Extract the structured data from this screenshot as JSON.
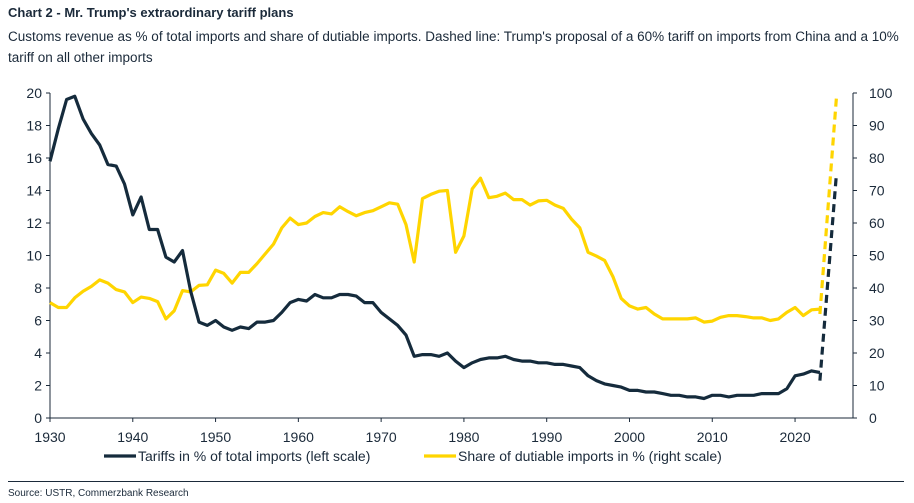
{
  "header": {
    "title": "Chart 2 - Mr. Trump's extraordinary tariff plans",
    "subtitle": "Customs revenue as % of total imports and share of dutiable imports. Dashed line: Trump's proposal of a 60% tariff on imports from China and a 10% tariff on all other imports"
  },
  "footer": {
    "source": "Source: USTR, Commerzbank Research"
  },
  "chart_data": {
    "type": "line",
    "xlim": [
      1930,
      2027
    ],
    "x_ticks": [
      1930,
      1940,
      1950,
      1960,
      1970,
      1980,
      1990,
      2000,
      2010,
      2020
    ],
    "y_left": {
      "lim": [
        0,
        20
      ],
      "ticks": [
        0,
        2,
        4,
        6,
        8,
        10,
        12,
        14,
        16,
        18,
        20
      ]
    },
    "y_right": {
      "lim": [
        0,
        100
      ],
      "ticks": [
        0,
        10,
        20,
        30,
        40,
        50,
        60,
        70,
        80,
        90,
        100
      ]
    },
    "grid": false,
    "legend": "bottom",
    "series": [
      {
        "name": "Tariffs in % of total imports (left scale)",
        "axis": "left",
        "color": "#152b3c",
        "x": [
          1930,
          1931,
          1932,
          1933,
          1934,
          1935,
          1936,
          1937,
          1938,
          1939,
          1940,
          1941,
          1942,
          1943,
          1944,
          1945,
          1946,
          1947,
          1948,
          1949,
          1950,
          1951,
          1952,
          1953,
          1954,
          1955,
          1956,
          1957,
          1958,
          1959,
          1960,
          1961,
          1962,
          1963,
          1964,
          1965,
          1966,
          1967,
          1968,
          1969,
          1970,
          1971,
          1972,
          1973,
          1974,
          1975,
          1976,
          1977,
          1978,
          1979,
          1980,
          1981,
          1982,
          1983,
          1984,
          1985,
          1986,
          1987,
          1988,
          1989,
          1990,
          1991,
          1992,
          1993,
          1994,
          1995,
          1996,
          1997,
          1998,
          1999,
          2000,
          2001,
          2002,
          2003,
          2004,
          2005,
          2006,
          2007,
          2008,
          2009,
          2010,
          2011,
          2012,
          2013,
          2014,
          2015,
          2016,
          2017,
          2018,
          2019,
          2020,
          2021,
          2022,
          2023
        ],
        "values": [
          15.8,
          17.8,
          19.6,
          19.8,
          18.4,
          17.5,
          16.8,
          15.6,
          15.5,
          14.4,
          12.5,
          13.6,
          11.6,
          11.6,
          9.9,
          9.6,
          10.3,
          7.8,
          5.9,
          5.7,
          6.0,
          5.6,
          5.4,
          5.6,
          5.5,
          5.9,
          5.9,
          6.0,
          6.5,
          7.1,
          7.3,
          7.2,
          7.6,
          7.4,
          7.4,
          7.6,
          7.6,
          7.5,
          7.1,
          7.1,
          6.5,
          6.1,
          5.7,
          5.1,
          3.8,
          3.9,
          3.9,
          3.8,
          4.0,
          3.5,
          3.1,
          3.4,
          3.6,
          3.7,
          3.7,
          3.8,
          3.6,
          3.5,
          3.5,
          3.4,
          3.4,
          3.3,
          3.3,
          3.2,
          3.1,
          2.6,
          2.3,
          2.1,
          2.0,
          1.9,
          1.7,
          1.7,
          1.6,
          1.6,
          1.5,
          1.4,
          1.4,
          1.3,
          1.3,
          1.2,
          1.4,
          1.4,
          1.3,
          1.4,
          1.4,
          1.4,
          1.5,
          1.5,
          1.5,
          1.8,
          2.6,
          2.7,
          2.9,
          2.8
        ]
      },
      {
        "name": "Share of dutiable imports in % (right scale)",
        "axis": "right",
        "color": "#ffd500",
        "x": [
          1930,
          1931,
          1932,
          1933,
          1934,
          1935,
          1936,
          1937,
          1938,
          1939,
          1940,
          1941,
          1942,
          1943,
          1944,
          1945,
          1946,
          1947,
          1948,
          1949,
          1950,
          1951,
          1952,
          1953,
          1954,
          1955,
          1956,
          1957,
          1958,
          1959,
          1960,
          1961,
          1962,
          1963,
          1964,
          1965,
          1966,
          1967,
          1968,
          1969,
          1970,
          1971,
          1972,
          1973,
          1974,
          1975,
          1976,
          1977,
          1978,
          1979,
          1980,
          1981,
          1982,
          1983,
          1984,
          1985,
          1986,
          1987,
          1988,
          1989,
          1990,
          1991,
          1992,
          1993,
          1994,
          1995,
          1996,
          1997,
          1998,
          1999,
          2000,
          2001,
          2002,
          2003,
          2004,
          2005,
          2006,
          2007,
          2008,
          2009,
          2010,
          2011,
          2012,
          2013,
          2014,
          2015,
          2016,
          2017,
          2018,
          2019,
          2020,
          2021,
          2022,
          2023
        ],
        "values": [
          35.5,
          34,
          34,
          37,
          39,
          40.5,
          42.5,
          41.5,
          39.5,
          38.8,
          35.5,
          37.2,
          36.8,
          35.8,
          30.5,
          33,
          39.2,
          38.8,
          40.8,
          41,
          45.5,
          44.5,
          41.5,
          44.8,
          44.8,
          47.5,
          50.5,
          53.5,
          58.5,
          61.5,
          59.5,
          60,
          62,
          63.2,
          62.8,
          65,
          63.5,
          62.2,
          63.2,
          63.8,
          65,
          66.2,
          65.8,
          59.5,
          48,
          67.5,
          68.8,
          69.8,
          70,
          51,
          56,
          70.5,
          73.8,
          67.8,
          68.2,
          69.2,
          67.2,
          67.2,
          65.5,
          66.8,
          67,
          65.5,
          64.5,
          61.2,
          58.5,
          51,
          49.8,
          48.5,
          43.5,
          36.8,
          34.5,
          33.5,
          34,
          32,
          30.5,
          30.5,
          30.5,
          30.5,
          30.8,
          29.5,
          29.8,
          31,
          31.5,
          31.5,
          31.2,
          30.8,
          30.8,
          30,
          30.5,
          32.5,
          34,
          31.5,
          33.3,
          33.5
        ]
      },
      {
        "name": "",
        "axis": "left",
        "style": "dashed",
        "color": "#152b3c",
        "x": [
          2023,
          2025
        ],
        "values": [
          2.3,
          15.0
        ]
      },
      {
        "name": "",
        "axis": "right",
        "style": "dashed",
        "color": "#ffd500",
        "x": [
          2023,
          2025
        ],
        "values": [
          32,
          98.5
        ]
      }
    ]
  }
}
